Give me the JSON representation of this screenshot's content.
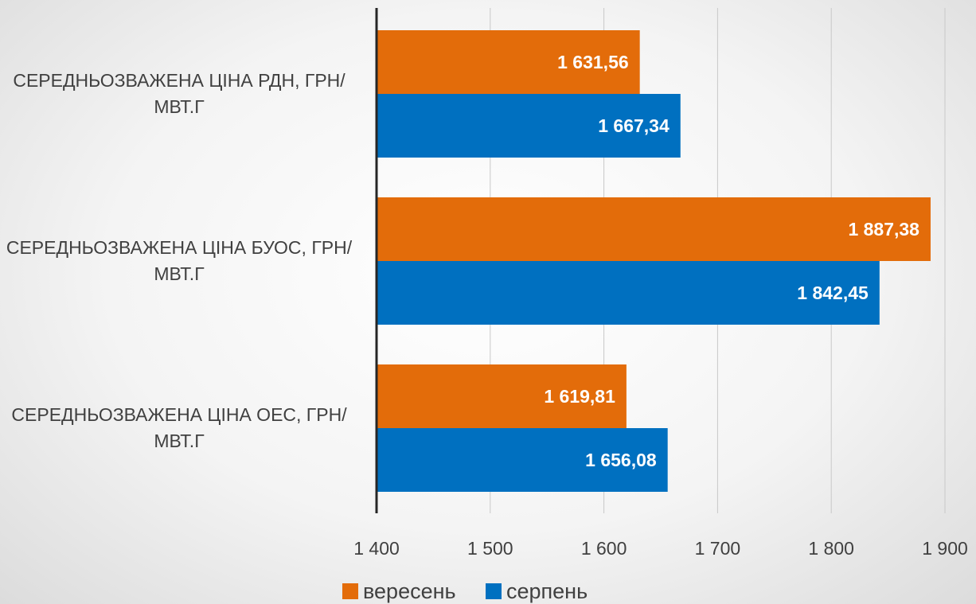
{
  "chart_data": {
    "type": "bar",
    "orientation": "horizontal",
    "categories": [
      "СЕРЕДНЬОЗВАЖЕНА ЦІНА РДН, ГРН/МВТ.Г",
      "СЕРЕДНЬОЗВАЖЕНА ЦІНА БУОС, ГРН/МВТ.Г",
      "СЕРЕДНЬОЗВАЖЕНА ЦІНА ОЕС, ГРН/МВТ.Г"
    ],
    "series": [
      {
        "name": "вересень",
        "color": "#e36c0a",
        "values": [
          1631.56,
          1887.38,
          1619.81
        ],
        "value_labels": [
          "1 631,56",
          "1 887,38",
          "1 619,81"
        ]
      },
      {
        "name": "серпень",
        "color": "#0070c0",
        "values": [
          1667.34,
          1842.45,
          1656.08
        ],
        "value_labels": [
          "1 667,34",
          "1 842,45",
          "1 656,08"
        ]
      }
    ],
    "xlim": [
      1400,
      1900
    ],
    "xticks": [
      {
        "value": 1400,
        "label": "1 400"
      },
      {
        "value": 1500,
        "label": "1 500"
      },
      {
        "value": 1600,
        "label": "1 600"
      },
      {
        "value": 1700,
        "label": "1 700"
      },
      {
        "value": 1800,
        "label": "1 800"
      },
      {
        "value": 1900,
        "label": "1 900"
      }
    ],
    "grid": true,
    "legend": "bottom"
  }
}
